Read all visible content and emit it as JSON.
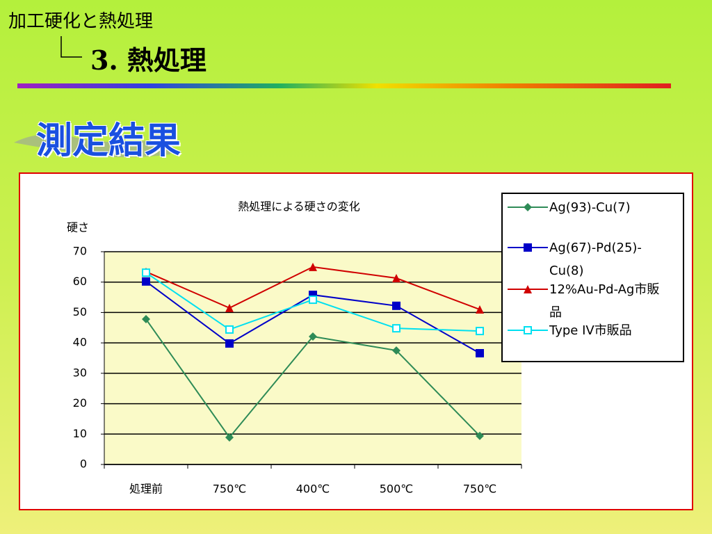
{
  "header": {
    "title": "加工硬化と熱処理",
    "subtitle": "3. 熱処理",
    "section": "測定結果"
  },
  "chart_data": {
    "type": "line",
    "title": "熱処理による硬さの変化",
    "y_label": "硬さ",
    "categories": [
      "処理前",
      "750℃",
      "400℃",
      "500℃",
      "750℃"
    ],
    "series": [
      {
        "name": "Ag(93)-Cu(7)",
        "color": "#2e8b57",
        "marker": "diamond",
        "values": [
          47.8,
          8.9,
          42.1,
          37.5,
          9.4
        ]
      },
      {
        "name": "Ag(67)-Pd(25)-Cu(8)",
        "color": "#0000c8",
        "marker": "square",
        "values": [
          60.2,
          39.8,
          55.8,
          52.2,
          36.6
        ]
      },
      {
        "name": "12%Au-Pd-Ag市販品",
        "color": "#d00000",
        "marker": "triangle",
        "values": [
          63.4,
          51.5,
          65.0,
          61.3,
          51.0
        ]
      },
      {
        "name": "Type IV市販品",
        "color": "#00e0f0",
        "marker": "hollow-square",
        "values": [
          63.1,
          44.4,
          54.2,
          44.8,
          43.9
        ]
      }
    ],
    "ylim": [
      0,
      70
    ],
    "yticks": [
      0,
      10,
      20,
      30,
      40,
      50,
      60,
      70
    ],
    "grid": true,
    "legend": "right"
  }
}
